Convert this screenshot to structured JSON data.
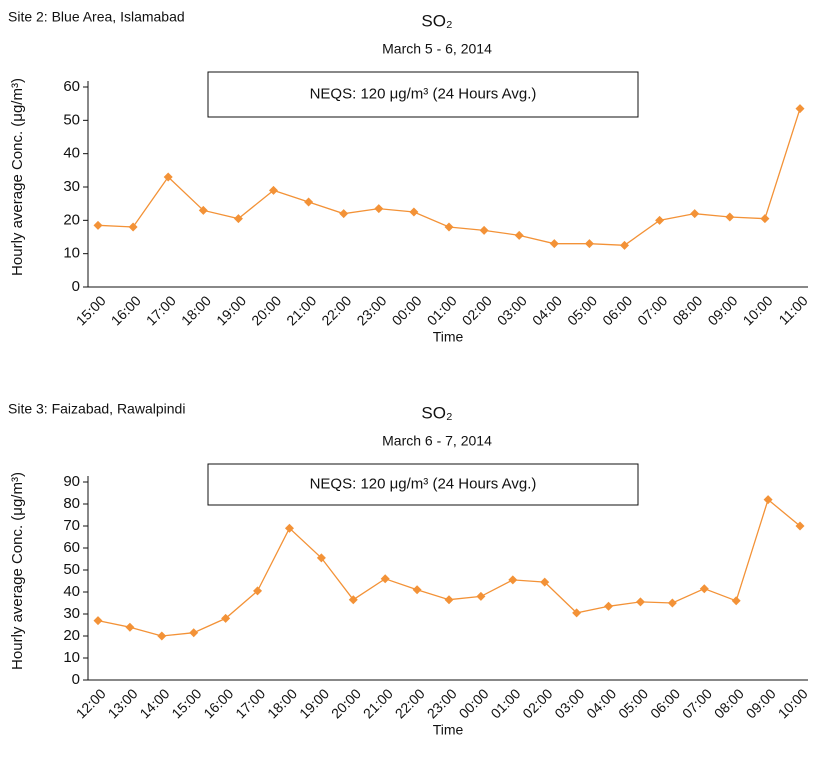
{
  "chart_data": [
    {
      "type": "line",
      "site": "Site 2: Blue Area, Islamabad",
      "title": "SO₂",
      "subtitle": "March 5 - 6, 2014",
      "annotation": "NEQS: 120 μg/m³  (24 Hours Avg.)",
      "x_label": "Time",
      "y_label": "Hourly average Conc. (μg/m³)",
      "color": "#f39237",
      "categories": [
        "15:00",
        "16:00",
        "17:00",
        "18:00",
        "19:00",
        "20:00",
        "21:00",
        "22:00",
        "23:00",
        "00:00",
        "01:00",
        "02:00",
        "03:00",
        "04:00",
        "05:00",
        "06:00",
        "07:00",
        "08:00",
        "09:00",
        "10:00",
        "11:00"
      ],
      "values": [
        18.5,
        18,
        33,
        23,
        20.5,
        29,
        25.5,
        22,
        23.5,
        22.5,
        18,
        17,
        15.5,
        13,
        13,
        12.5,
        20,
        22,
        21,
        20.5,
        53.5
      ],
      "ylim": [
        0,
        60
      ],
      "yticks": [
        0,
        10,
        20,
        30,
        40,
        50,
        60
      ]
    },
    {
      "type": "line",
      "site": "Site 3: Faizabad, Rawalpindi",
      "title": "SO₂",
      "subtitle": "March 6 - 7, 2014",
      "annotation": "NEQS: 120 μg/m³  (24 Hours Avg.)",
      "x_label": "Time",
      "y_label": "Hourly average Conc. (μg/m³)",
      "color": "#f39237",
      "categories": [
        "12:00",
        "13:00",
        "14:00",
        "15:00",
        "16:00",
        "17:00",
        "18:00",
        "19:00",
        "20:00",
        "21:00",
        "22:00",
        "23:00",
        "00:00",
        "01:00",
        "02:00",
        "03:00",
        "04:00",
        "05:00",
        "06:00",
        "07:00",
        "08:00",
        "09:00",
        "10:00"
      ],
      "values": [
        27,
        24,
        20,
        21.5,
        28,
        40.5,
        69,
        55.5,
        36.5,
        46,
        41,
        36.5,
        38,
        45.5,
        44.5,
        30.5,
        33.5,
        35.5,
        35,
        41.5,
        36,
        82,
        70
      ],
      "ylim": [
        0,
        90
      ],
      "yticks": [
        0,
        10,
        20,
        30,
        40,
        50,
        60,
        70,
        80,
        90
      ]
    }
  ]
}
